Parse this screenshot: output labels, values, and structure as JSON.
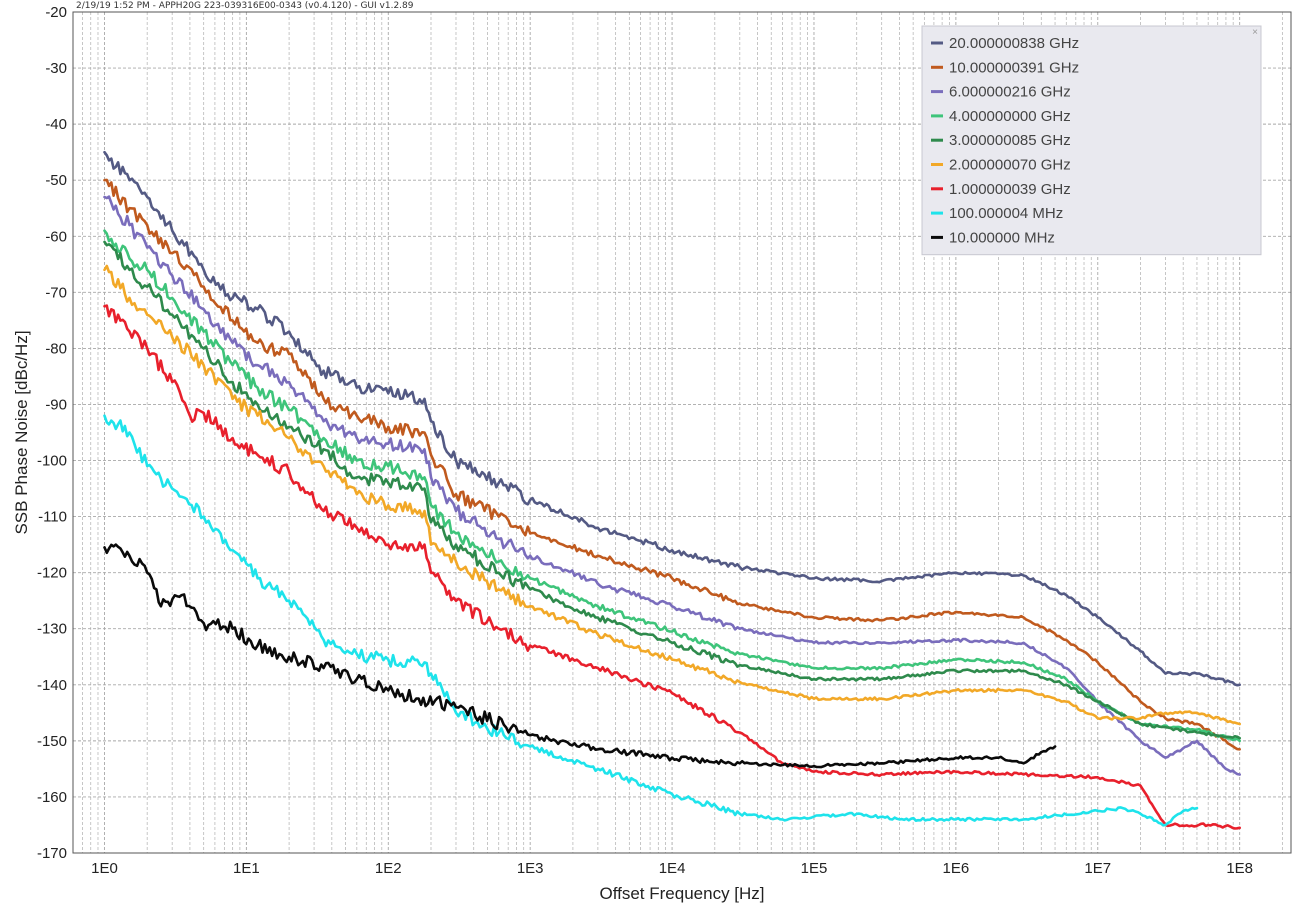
{
  "header": {
    "text": "2/19/19 1:52 PM - APPH20G 223-039316E00-0343 (v0.4.120) - GUI v1.2.89"
  },
  "legend": {
    "close_icon": "close-icon",
    "close_glyph": "×"
  },
  "chart_data": {
    "type": "line",
    "title": "",
    "xlabel": "Offset Frequency [Hz]",
    "ylabel": "SSB Phase Noise [dBc/Hz]",
    "x_scale": "log",
    "xlim": [
      0.6,
      230000000
    ],
    "ylim": [
      -170,
      -20
    ],
    "x_ticks": [
      1,
      10,
      100,
      1000,
      10000,
      100000,
      1000000,
      10000000,
      100000000
    ],
    "x_tick_labels": [
      "1E0",
      "1E1",
      "1E2",
      "1E3",
      "1E4",
      "1E5",
      "1E6",
      "1E7",
      "1E8"
    ],
    "y_ticks": [
      -20,
      -30,
      -40,
      -50,
      -60,
      -70,
      -80,
      -90,
      -100,
      -110,
      -120,
      -130,
      -140,
      -150,
      -160,
      -170
    ],
    "y_tick_labels": [
      "-20",
      "-30",
      "-40",
      "-50",
      "-60",
      "-70",
      "-80",
      "-90",
      "-100",
      "-110",
      "-120",
      "-130",
      "-140",
      "-150",
      "-160",
      "-170"
    ],
    "grid": true,
    "legend_position": "top-right",
    "series": [
      {
        "name": "20.000000838 GHz",
        "color": "#545a84",
        "points": [
          [
            1,
            -45
          ],
          [
            1.5,
            -50
          ],
          [
            2,
            -53
          ],
          [
            3,
            -59
          ],
          [
            5,
            -66
          ],
          [
            8,
            -71
          ],
          [
            12,
            -73
          ],
          [
            20,
            -77
          ],
          [
            35,
            -84
          ],
          [
            60,
            -87
          ],
          [
            100,
            -88
          ],
          [
            180,
            -89
          ],
          [
            200,
            -93
          ],
          [
            300,
            -100
          ],
          [
            600,
            -104
          ],
          [
            1000,
            -107
          ],
          [
            3000,
            -112
          ],
          [
            10000,
            -116
          ],
          [
            30000,
            -119
          ],
          [
            100000,
            -121
          ],
          [
            300000,
            -121.5
          ],
          [
            1000000,
            -120
          ],
          [
            3000000,
            -120.5
          ],
          [
            6000000,
            -124
          ],
          [
            10000000,
            -128
          ],
          [
            20000000,
            -134
          ],
          [
            30000000,
            -138
          ],
          [
            50000000,
            -138
          ],
          [
            100000000,
            -140
          ]
        ]
      },
      {
        "name": "10.000000391 GHz",
        "color": "#c05a1e",
        "points": [
          [
            1,
            -50
          ],
          [
            1.5,
            -55
          ],
          [
            2,
            -58
          ],
          [
            3,
            -63
          ],
          [
            5,
            -69
          ],
          [
            8,
            -75
          ],
          [
            12,
            -79
          ],
          [
            20,
            -81
          ],
          [
            35,
            -89
          ],
          [
            60,
            -92
          ],
          [
            100,
            -94
          ],
          [
            180,
            -95
          ],
          [
            200,
            -99
          ],
          [
            300,
            -106
          ],
          [
            600,
            -110
          ],
          [
            1000,
            -113
          ],
          [
            3000,
            -117
          ],
          [
            10000,
            -121
          ],
          [
            30000,
            -125.5
          ],
          [
            100000,
            -128
          ],
          [
            300000,
            -128.5
          ],
          [
            1000000,
            -127
          ],
          [
            3000000,
            -128
          ],
          [
            6000000,
            -132
          ],
          [
            10000000,
            -136
          ],
          [
            20000000,
            -143
          ],
          [
            30000000,
            -146
          ],
          [
            50000000,
            -147
          ],
          [
            100000000,
            -151.5
          ]
        ]
      },
      {
        "name": "6.000000216 GHz",
        "color": "#7a6dbc",
        "points": [
          [
            1,
            -53
          ],
          [
            1.5,
            -58
          ],
          [
            2,
            -62
          ],
          [
            3,
            -67
          ],
          [
            5,
            -73
          ],
          [
            8,
            -79
          ],
          [
            12,
            -83
          ],
          [
            20,
            -86
          ],
          [
            35,
            -93
          ],
          [
            60,
            -96
          ],
          [
            100,
            -97
          ],
          [
            180,
            -98
          ],
          [
            200,
            -103
          ],
          [
            300,
            -109
          ],
          [
            600,
            -114
          ],
          [
            1000,
            -117
          ],
          [
            3000,
            -122
          ],
          [
            10000,
            -126
          ],
          [
            30000,
            -130
          ],
          [
            100000,
            -132.5
          ],
          [
            300000,
            -132.5
          ],
          [
            1000000,
            -132
          ],
          [
            3000000,
            -132.5
          ],
          [
            6000000,
            -137
          ],
          [
            10000000,
            -143
          ],
          [
            20000000,
            -150
          ],
          [
            30000000,
            -153
          ],
          [
            50000000,
            -150
          ],
          [
            80000000,
            -155
          ],
          [
            100000000,
            -156
          ]
        ]
      },
      {
        "name": "4.000000000 GHz",
        "color": "#3ec47a",
        "points": [
          [
            1,
            -59
          ],
          [
            1.5,
            -64
          ],
          [
            2,
            -66
          ],
          [
            3,
            -71
          ],
          [
            5,
            -77
          ],
          [
            8,
            -83
          ],
          [
            12,
            -87
          ],
          [
            20,
            -91
          ],
          [
            35,
            -96
          ],
          [
            60,
            -100
          ],
          [
            100,
            -101
          ],
          [
            180,
            -103
          ],
          [
            200,
            -108
          ],
          [
            300,
            -113
          ],
          [
            600,
            -118
          ],
          [
            1000,
            -121
          ],
          [
            3000,
            -126
          ],
          [
            10000,
            -130.5
          ],
          [
            30000,
            -134.5
          ],
          [
            100000,
            -137
          ],
          [
            300000,
            -137
          ],
          [
            1000000,
            -135.5
          ],
          [
            3000000,
            -136
          ],
          [
            6000000,
            -139
          ],
          [
            10000000,
            -143
          ],
          [
            20000000,
            -147
          ],
          [
            50000000,
            -148
          ],
          [
            100000000,
            -150
          ]
        ]
      },
      {
        "name": "3.000000085 GHz",
        "color": "#2e8a4c",
        "points": [
          [
            1,
            -61
          ],
          [
            1.5,
            -66
          ],
          [
            2,
            -69
          ],
          [
            3,
            -74
          ],
          [
            5,
            -80
          ],
          [
            8,
            -86
          ],
          [
            12,
            -90
          ],
          [
            20,
            -94
          ],
          [
            35,
            -98
          ],
          [
            60,
            -103
          ],
          [
            100,
            -104
          ],
          [
            180,
            -105
          ],
          [
            200,
            -111
          ],
          [
            300,
            -115
          ],
          [
            600,
            -120
          ],
          [
            1000,
            -123
          ],
          [
            3000,
            -128
          ],
          [
            10000,
            -132.5
          ],
          [
            30000,
            -136.5
          ],
          [
            100000,
            -139
          ],
          [
            300000,
            -139
          ],
          [
            1000000,
            -137.5
          ],
          [
            3000000,
            -137.5
          ],
          [
            6000000,
            -140
          ],
          [
            10000000,
            -143
          ],
          [
            20000000,
            -147
          ],
          [
            50000000,
            -148.5
          ],
          [
            100000000,
            -149.5
          ]
        ]
      },
      {
        "name": "2.000000070 GHz",
        "color": "#f2a827",
        "points": [
          [
            1,
            -66
          ],
          [
            1.5,
            -71
          ],
          [
            2,
            -74
          ],
          [
            3,
            -78
          ],
          [
            5,
            -83
          ],
          [
            8,
            -89
          ],
          [
            12,
            -92
          ],
          [
            20,
            -96
          ],
          [
            35,
            -101
          ],
          [
            60,
            -106
          ],
          [
            100,
            -108
          ],
          [
            180,
            -109
          ],
          [
            200,
            -115
          ],
          [
            300,
            -118
          ],
          [
            600,
            -123
          ],
          [
            1000,
            -126
          ],
          [
            3000,
            -131
          ],
          [
            10000,
            -135.5
          ],
          [
            30000,
            -139.5
          ],
          [
            100000,
            -142.5
          ],
          [
            300000,
            -142.5
          ],
          [
            1000000,
            -141
          ],
          [
            3000000,
            -141
          ],
          [
            6000000,
            -143
          ],
          [
            10000000,
            -146
          ],
          [
            20000000,
            -146
          ],
          [
            30000000,
            -145
          ],
          [
            50000000,
            -145
          ],
          [
            100000000,
            -147
          ]
        ]
      },
      {
        "name": "1.000000039 GHz",
        "color": "#e8202c",
        "points": [
          [
            1,
            -72.5
          ],
          [
            1.5,
            -77
          ],
          [
            2,
            -80
          ],
          [
            3,
            -86
          ],
          [
            4,
            -92
          ],
          [
            5,
            -91.5
          ],
          [
            8,
            -96
          ],
          [
            12,
            -99
          ],
          [
            20,
            -102
          ],
          [
            35,
            -109
          ],
          [
            60,
            -112
          ],
          [
            100,
            -115
          ],
          [
            180,
            -115
          ],
          [
            200,
            -120
          ],
          [
            300,
            -125
          ],
          [
            600,
            -130
          ],
          [
            1000,
            -133
          ],
          [
            3000,
            -137
          ],
          [
            10000,
            -141.5
          ],
          [
            30000,
            -148.5
          ],
          [
            60000,
            -154
          ],
          [
            100000,
            -155.5
          ],
          [
            300000,
            -156
          ],
          [
            1000000,
            -155.5
          ],
          [
            3000000,
            -156
          ],
          [
            10000000,
            -156.5
          ],
          [
            20000000,
            -158
          ],
          [
            25000000,
            -162
          ],
          [
            30000000,
            -165
          ],
          [
            60000000,
            -165
          ],
          [
            100000000,
            -165.5
          ]
        ]
      },
      {
        "name": "100.000004 MHz",
        "color": "#1ee3eb",
        "points": [
          [
            1,
            -92
          ],
          [
            1.5,
            -95
          ],
          [
            2,
            -101
          ],
          [
            3,
            -105
          ],
          [
            5,
            -110
          ],
          [
            8,
            -116
          ],
          [
            12,
            -121
          ],
          [
            20,
            -125
          ],
          [
            35,
            -132
          ],
          [
            60,
            -134.5
          ],
          [
            100,
            -135.5
          ],
          [
            180,
            -136
          ],
          [
            200,
            -138
          ],
          [
            300,
            -145
          ],
          [
            1000,
            -151
          ],
          [
            3000,
            -155
          ],
          [
            10000,
            -159.5
          ],
          [
            30000,
            -163
          ],
          [
            60000,
            -164
          ],
          [
            100000,
            -163.5
          ],
          [
            200000,
            -163
          ],
          [
            400000,
            -164
          ],
          [
            1000000,
            -164
          ],
          [
            3000000,
            -164
          ],
          [
            10000000,
            -162.5
          ],
          [
            15000000,
            -162
          ],
          [
            20000000,
            -163
          ],
          [
            30000000,
            -165
          ],
          [
            40000000,
            -162.5
          ],
          [
            50000000,
            -162
          ]
        ]
      },
      {
        "name": "10.000000 MHz",
        "color": "#0a0a0a",
        "points": [
          [
            1,
            -115.5
          ],
          [
            1.5,
            -117
          ],
          [
            2,
            -120
          ],
          [
            2.5,
            -126
          ],
          [
            3.5,
            -124
          ],
          [
            5,
            -129
          ],
          [
            8,
            -130
          ],
          [
            12,
            -133
          ],
          [
            20,
            -135
          ],
          [
            35,
            -137
          ],
          [
            60,
            -139
          ],
          [
            100,
            -141
          ],
          [
            300,
            -144
          ],
          [
            1000,
            -149
          ],
          [
            3000,
            -151.5
          ],
          [
            10000,
            -153
          ],
          [
            30000,
            -154
          ],
          [
            100000,
            -154.5
          ],
          [
            300000,
            -154
          ],
          [
            1000000,
            -153
          ],
          [
            2000000,
            -153
          ],
          [
            3000000,
            -154
          ],
          [
            4000000,
            -152
          ],
          [
            5000000,
            -151
          ]
        ]
      }
    ]
  }
}
